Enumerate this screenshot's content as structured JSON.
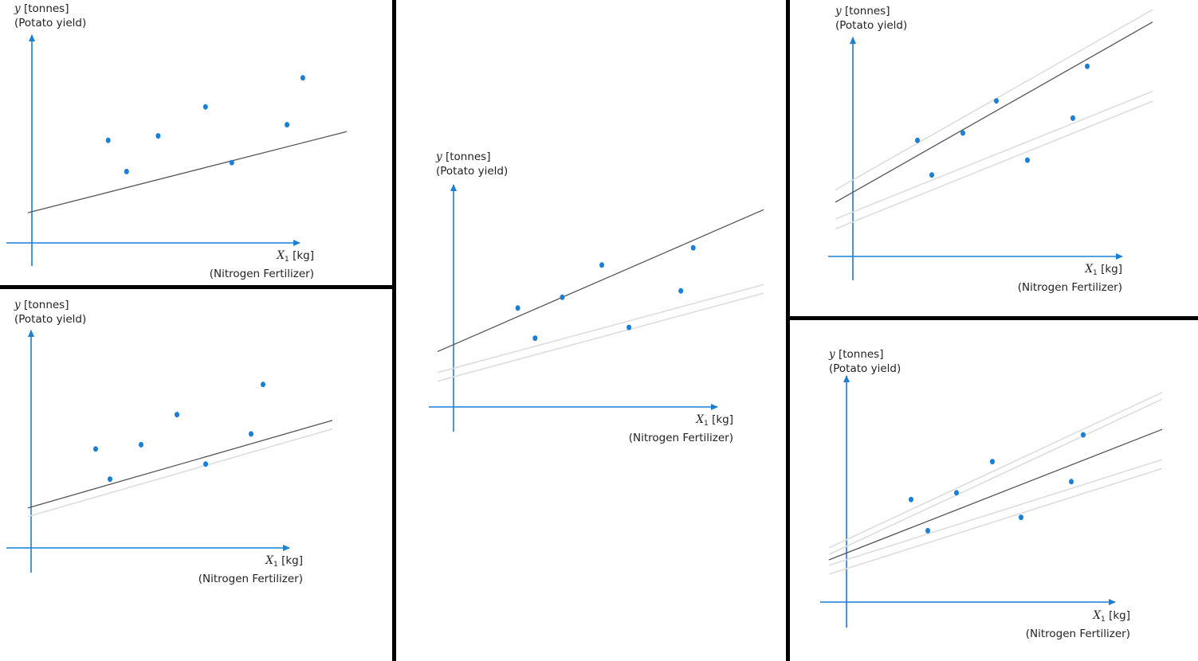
{
  "style": {
    "axis_color": "#1a7fd6",
    "point_color": "#1a7fd6",
    "fit_line_color": "#555555",
    "aux_line_color": "#dddddd",
    "divider_color": "#000000"
  },
  "axis_text": {
    "y_var": "y",
    "y_unit": "[tonnes]",
    "y_desc": "(Potato yield)",
    "x_var": "X",
    "x_sub": "1",
    "x_unit": "[kg]",
    "x_desc": "(Nitrogen Fertilizer)"
  },
  "chart_data": [
    {
      "type": "scatter",
      "xlabel": "X1 [kg] (Nitrogen Fertilizer)",
      "ylabel": "y [tonnes] (Potato yield)",
      "points": [
        [
          2.9,
          4.6
        ],
        [
          3.6,
          3.2
        ],
        [
          4.8,
          4.8
        ],
        [
          6.6,
          6.1
        ],
        [
          7.6,
          3.6
        ],
        [
          9.7,
          5.3
        ],
        [
          10.3,
          7.4
        ]
      ],
      "fit_line": {
        "intercept": 1.4,
        "slope": 0.3
      },
      "aux_lines": []
    },
    {
      "type": "scatter",
      "xlabel": "X1 [kg] (Nitrogen Fertilizer)",
      "ylabel": "y [tonnes] (Potato yield)",
      "points": [
        [
          2.7,
          4.6
        ],
        [
          3.3,
          3.2
        ],
        [
          4.6,
          4.8
        ],
        [
          6.1,
          6.2
        ],
        [
          7.3,
          3.9
        ],
        [
          9.2,
          5.3
        ],
        [
          9.7,
          7.6
        ]
      ],
      "fit_line": {
        "intercept": 1.9,
        "slope": 0.32
      },
      "aux_lines": [
        {
          "intercept": 1.5,
          "slope": 0.32
        }
      ]
    },
    {
      "type": "scatter",
      "xlabel": "X1 [kg] (Nitrogen Fertilizer)",
      "ylabel": "y [tonnes] (Potato yield)",
      "points": [
        [
          2.6,
          4.6
        ],
        [
          3.3,
          3.2
        ],
        [
          4.4,
          5.1
        ],
        [
          6.0,
          6.6
        ],
        [
          7.1,
          3.7
        ],
        [
          9.2,
          5.4
        ],
        [
          9.7,
          7.4
        ]
      ],
      "fit_line": {
        "intercept": 2.9,
        "slope": 0.5
      },
      "aux_lines": [
        {
          "intercept": 1.8,
          "slope": 0.31
        },
        {
          "intercept": 1.4,
          "slope": 0.31
        }
      ]
    },
    {
      "type": "scatter",
      "xlabel": "X1 [kg] (Nitrogen Fertilizer)",
      "ylabel": "y [tonnes] (Potato yield)",
      "points": [
        [
          2.7,
          4.7
        ],
        [
          3.3,
          3.3
        ],
        [
          4.6,
          5.0
        ],
        [
          6.0,
          6.3
        ],
        [
          7.3,
          3.9
        ],
        [
          9.2,
          5.6
        ],
        [
          9.8,
          7.7
        ]
      ],
      "fit_line": {
        "intercept": 2.6,
        "slope": 0.55
      },
      "aux_lines": [
        {
          "intercept": 3.1,
          "slope": 0.55
        },
        {
          "intercept": 1.8,
          "slope": 0.39
        },
        {
          "intercept": 1.4,
          "slope": 0.39
        }
      ]
    },
    {
      "type": "scatter",
      "xlabel": "X1 [kg] (Nitrogen Fertilizer)",
      "ylabel": "y [tonnes] (Potato yield)",
      "points": [
        [
          2.7,
          4.6
        ],
        [
          3.4,
          3.2
        ],
        [
          4.6,
          4.9
        ],
        [
          6.1,
          6.3
        ],
        [
          7.3,
          3.8
        ],
        [
          9.4,
          5.4
        ],
        [
          9.9,
          7.5
        ]
      ],
      "fit_line": {
        "intercept": 2.2,
        "slope": 0.42
      },
      "aux_lines": [
        {
          "intercept": 2.8,
          "slope": 0.5
        },
        {
          "intercept": 2.5,
          "slope": 0.5
        },
        {
          "intercept": 1.9,
          "slope": 0.34
        },
        {
          "intercept": 1.5,
          "slope": 0.34
        }
      ]
    }
  ]
}
